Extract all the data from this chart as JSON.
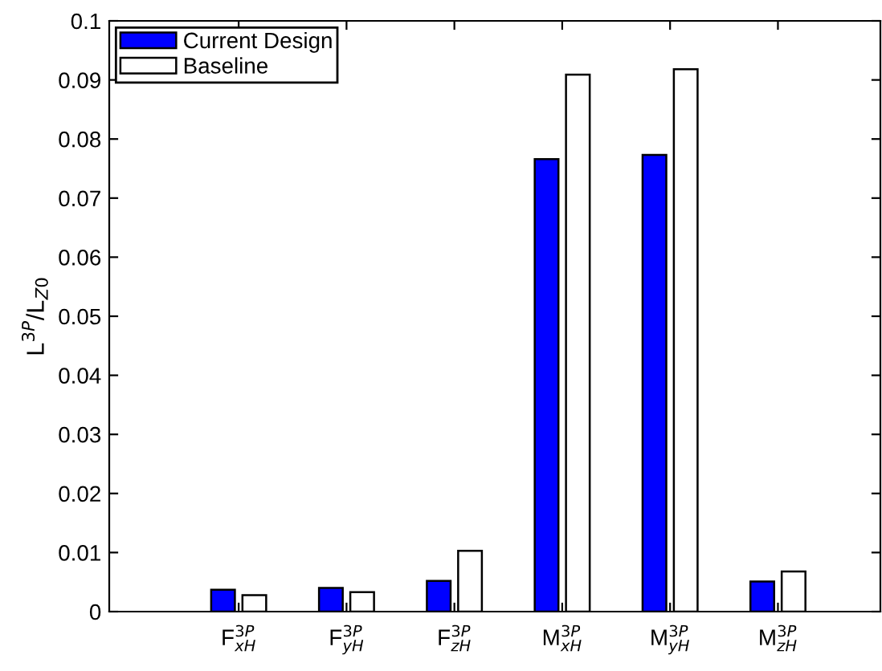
{
  "chart_data": {
    "type": "bar",
    "ylabel": "L$^{3P}$/L$_{Z0}$",
    "categories": [
      "F$^{3P}$$_{xH}$",
      "F$^{3P}$$_{yH}$",
      "F$^{3P}$$_{zH}$",
      "M$^{3P}$$_{xH}$",
      "M$^{3P}$$_{yH}$",
      "M$^{3P}$$_{zH}$"
    ],
    "series": [
      {
        "name": "Current Design",
        "color": "#0000ff",
        "values": [
          0.0037,
          0.004,
          0.0052,
          0.0766,
          0.0773,
          0.0051
        ]
      },
      {
        "name": "Baseline",
        "color": "#ffffff",
        "values": [
          0.0028,
          0.0033,
          0.0103,
          0.0909,
          0.0918,
          0.0068
        ]
      }
    ],
    "ylim": [
      0,
      0.1
    ],
    "yticks": [
      0,
      0.01,
      0.02,
      0.03,
      0.04,
      0.05,
      0.06,
      0.07,
      0.08,
      0.09,
      0.1
    ],
    "grid": false,
    "legend": "top left"
  }
}
